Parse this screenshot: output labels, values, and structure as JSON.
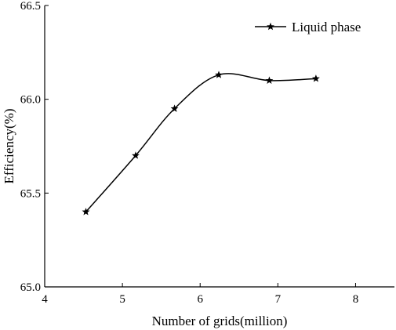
{
  "chart_data": {
    "type": "line",
    "xlabel": "Number of grids(million)",
    "ylabel": "Efficiency(%)",
    "xlim": [
      4,
      8.5
    ],
    "ylim": [
      65.0,
      66.5
    ],
    "xticks": [
      4,
      5,
      6,
      7,
      8
    ],
    "yticks": [
      65.0,
      65.5,
      66.0,
      66.5
    ],
    "xtick_labels": [
      "4",
      "5",
      "6",
      "7",
      "8"
    ],
    "ytick_labels": [
      "65.0",
      "65.5",
      "66.0",
      "66.5"
    ],
    "grid": false,
    "legend_position": "top-right",
    "line_style": "smooth",
    "marker": "star",
    "series": [
      {
        "name": "Liquid phase",
        "color": "#000000",
        "x": [
          4.53,
          5.17,
          5.67,
          6.24,
          6.89,
          7.49
        ],
        "y": [
          65.4,
          65.7,
          65.95,
          66.13,
          66.1,
          66.11
        ]
      }
    ]
  }
}
